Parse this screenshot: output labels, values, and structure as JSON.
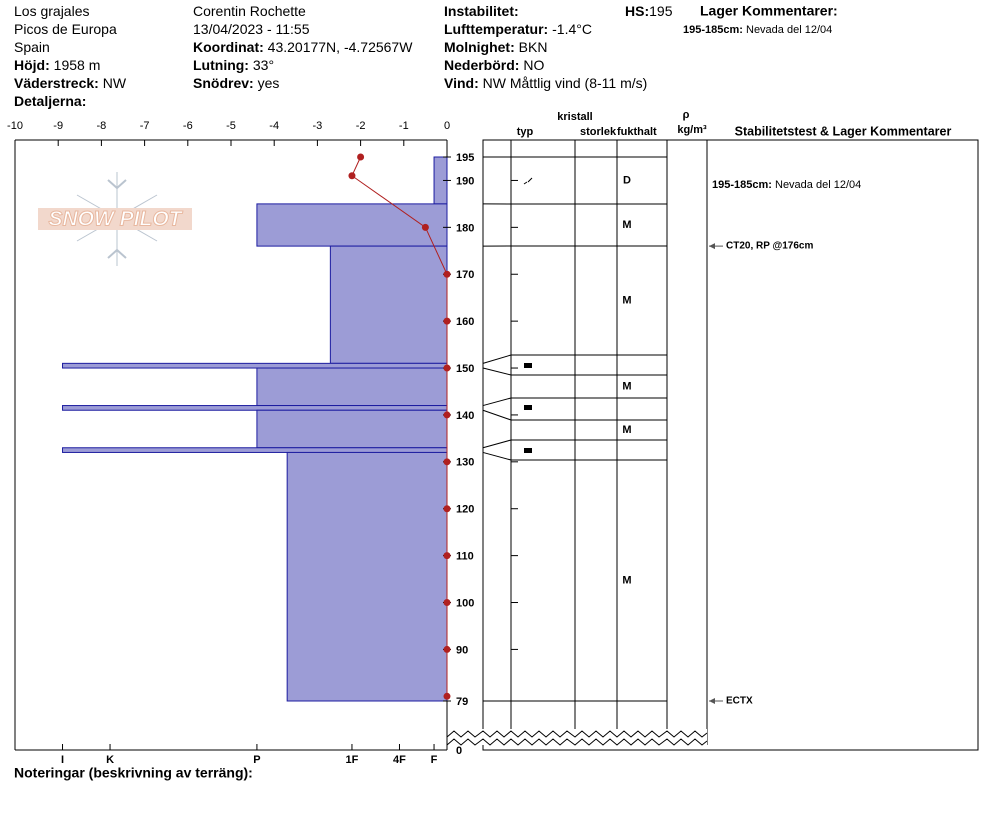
{
  "header": {
    "columns": [
      [
        {
          "value": "Los grajales"
        },
        {
          "value": "Picos de Europa"
        },
        {
          "value": "Spain"
        },
        {
          "label": "Höjd:",
          "value": "1958 m"
        },
        {
          "label": "Väderstreck:",
          "value": "NW"
        },
        {
          "label": "Detaljerna:"
        }
      ],
      [
        {
          "value": "Corentin Rochette"
        },
        {
          "value": "13/04/2023 - 11:55"
        },
        {
          "label": "Koordinat:",
          "value": "43.20177N, -4.72567W"
        },
        {
          "label": "Lutning:",
          "value": "33°"
        },
        {
          "label": "Snödrev:",
          "value": "yes"
        }
      ],
      [
        {
          "label": "Instabilitet:"
        },
        {
          "label": "Lufttemperatur:",
          "value": "-1.4°C"
        },
        {
          "label": "Molnighet:",
          "value": "BKN"
        },
        {
          "label": "Nederbörd:",
          "value": "NO"
        },
        {
          "label": "Vind:",
          "value": "NW Måttlig vind (8-11 m/s)"
        }
      ]
    ],
    "hs_label": "HS:",
    "hs_value": "195",
    "comments_title": "Lager Kommentarer:",
    "layer_comment": {
      "label": "195-185cm:",
      "text": "Nevada del 12/04"
    },
    "notes_label": "Noteringar (beskrivning av terräng):",
    "watermark": "SNOW PILOT"
  },
  "chart_data": {
    "type": "snowprofile",
    "column_headers": {
      "crystal": "kristall",
      "type": "typ",
      "size": "storlek",
      "moisture": "fukthalt",
      "rho": "ρ",
      "density_unit": "kg/m³",
      "stability": "Stabilitetstest & Lager Kommentarer"
    },
    "xlim": [
      -10,
      0
    ],
    "xticks": [
      -10,
      -9,
      -8,
      -7,
      -6,
      -5,
      -4,
      -3,
      -2,
      -1,
      0
    ],
    "ylim": [
      79,
      195
    ],
    "yticks": [
      195,
      190,
      180,
      170,
      160,
      150,
      140,
      130,
      120,
      110,
      100,
      90,
      79
    ],
    "ground_tick": 0,
    "hardness_lim": [
      0,
      10
    ],
    "hardness_ticks": [
      {
        "value": 8.9,
        "label": "I"
      },
      {
        "value": 7.8,
        "label": "K"
      },
      {
        "value": 4.4,
        "label": "P"
      },
      {
        "value": 2.2,
        "label": "1F"
      },
      {
        "value": 1.1,
        "label": "4F"
      },
      {
        "value": 0.3,
        "label": "F"
      }
    ],
    "bar_color": "#9c9cd6",
    "bar_edge": "#1c1ca0",
    "layers": [
      {
        "top": 195,
        "bottom": 185,
        "hardness": 0.3,
        "moisture": "D"
      },
      {
        "top": 185,
        "bottom": 176,
        "hardness": 4.4,
        "moisture": "M"
      },
      {
        "top": 176,
        "bottom": 151,
        "hardness": 2.7,
        "moisture": "M"
      },
      {
        "top": 151,
        "bottom": 150,
        "hardness": 8.9,
        "moisture": null
      },
      {
        "top": 150,
        "bottom": 142,
        "hardness": 4.4,
        "moisture": "M"
      },
      {
        "top": 142,
        "bottom": 141,
        "hardness": 8.9,
        "moisture": null
      },
      {
        "top": 141,
        "bottom": 133,
        "hardness": 4.4,
        "moisture": "M"
      },
      {
        "top": 133,
        "bottom": 132,
        "hardness": 8.9,
        "moisture": null
      },
      {
        "top": 132,
        "bottom": 79,
        "hardness": 3.7,
        "moisture": "M"
      }
    ],
    "temperature": {
      "color": "#b02020",
      "heights": [
        195,
        191,
        180,
        170,
        160,
        150,
        140,
        130,
        120,
        110,
        100,
        90,
        80
      ],
      "values": [
        -2.0,
        -2.2,
        -0.5,
        0,
        0,
        0,
        0,
        0,
        0,
        0,
        0,
        0,
        0
      ]
    },
    "stability_tests": [
      {
        "label": "CT20, RP @176cm",
        "depth": 176
      },
      {
        "label": "ECTX",
        "depth": 79
      }
    ]
  }
}
